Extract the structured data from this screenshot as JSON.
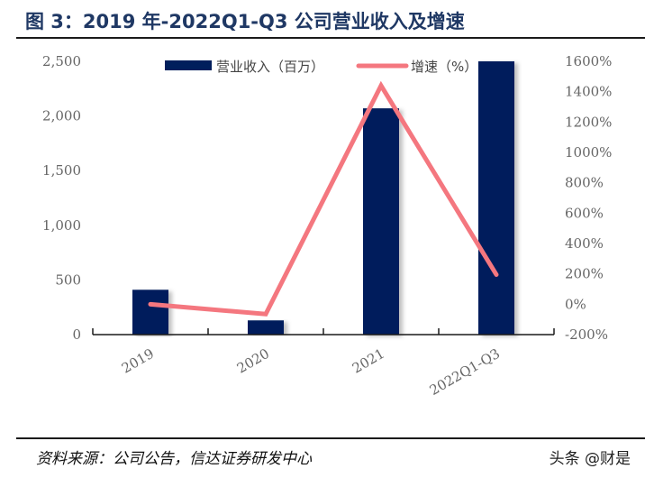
{
  "header": {
    "title": "图 3：2019 年-2022Q1-Q3 公司营业收入及增速"
  },
  "footer": {
    "source": "资料来源：公司公告，信达证券研发中心",
    "watermark": "头条 @财是"
  },
  "colors": {
    "bar": "#001f5c",
    "line": "#f4777f",
    "axis": "#1a1a1a",
    "tick_text": "#666666",
    "title": "#1f3864"
  },
  "chart_data": {
    "type": "bar+line",
    "title": "图 3：2019 年-2022Q1-Q3 公司营业收入及增速",
    "categories": [
      "2019",
      "2020",
      "2021",
      "2022Q1-Q3"
    ],
    "series": [
      {
        "name": "营业收入（百万）",
        "type": "bar",
        "axis": "left",
        "values": [
          410,
          130,
          2070,
          2500
        ]
      },
      {
        "name": "增速（%）",
        "type": "line",
        "axis": "right",
        "values": [
          0,
          -65,
          1440,
          195
        ]
      }
    ],
    "left_axis": {
      "label": "",
      "ylim": [
        0,
        2500
      ],
      "ticks": [
        "0",
        "500",
        "1,000",
        "1,500",
        "2,000",
        "2,500"
      ]
    },
    "right_axis": {
      "label": "",
      "ylim": [
        -200,
        1600
      ],
      "ticks": [
        "-200%",
        "0%",
        "200%",
        "400%",
        "600%",
        "800%",
        "1000%",
        "1200%",
        "1400%",
        "1600%"
      ]
    },
    "xlabel": "",
    "legend": {
      "position": "top",
      "entries": [
        "营业收入（百万）",
        "增速（%）"
      ]
    },
    "grid": false
  }
}
